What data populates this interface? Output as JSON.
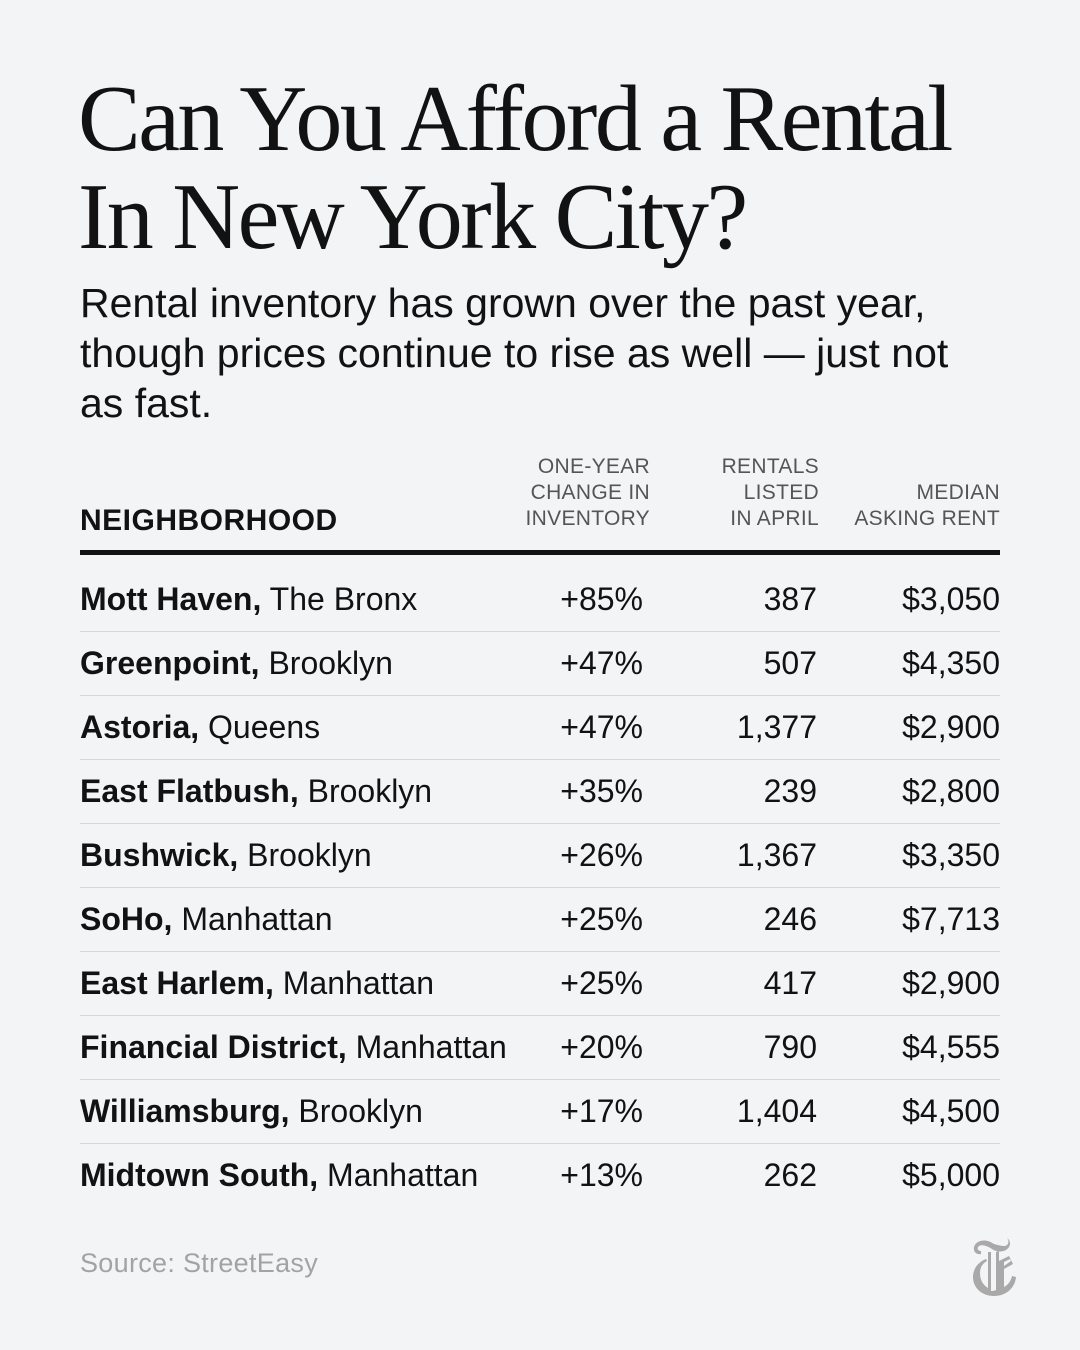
{
  "title": "Can You Afford a Rental In New York City?",
  "subtitle": "Rental inventory has grown over the past year, though prices continue to rise as well — just not as fast.",
  "table": {
    "columns": {
      "neighborhood": "NEIGHBORHOOD",
      "change": [
        "ONE-YEAR",
        "CHANGE IN",
        "INVENTORY"
      ],
      "rentals": [
        "RENTALS",
        "LISTED",
        "IN APRIL"
      ],
      "rent": [
        "MEDIAN",
        "ASKING RENT"
      ]
    },
    "rows": [
      {
        "neighborhood": "Mott Haven,",
        "borough": "The Bronx",
        "change": "+85%",
        "rentals": "387",
        "rent": "$3,050"
      },
      {
        "neighborhood": "Greenpoint,",
        "borough": "Brooklyn",
        "change": "+47%",
        "rentals": "507",
        "rent": "$4,350"
      },
      {
        "neighborhood": "Astoria,",
        "borough": "Queens",
        "change": "+47%",
        "rentals": "1,377",
        "rent": "$2,900"
      },
      {
        "neighborhood": "East Flatbush,",
        "borough": "Brooklyn",
        "change": "+35%",
        "rentals": "239",
        "rent": "$2,800"
      },
      {
        "neighborhood": "Bushwick,",
        "borough": "Brooklyn",
        "change": "+26%",
        "rentals": "1,367",
        "rent": "$3,350"
      },
      {
        "neighborhood": "SoHo,",
        "borough": "Manhattan",
        "change": "+25%",
        "rentals": "246",
        "rent": "$7,713"
      },
      {
        "neighborhood": "East Harlem,",
        "borough": "Manhattan",
        "change": "+25%",
        "rentals": "417",
        "rent": "$2,900"
      },
      {
        "neighborhood": "Financial District,",
        "borough": "Manhattan",
        "change": "+20%",
        "rentals": "790",
        "rent": "$4,555"
      },
      {
        "neighborhood": "Williamsburg,",
        "borough": "Brooklyn",
        "change": "+17%",
        "rentals": "1,404",
        "rent": "$4,500"
      },
      {
        "neighborhood": "Midtown South,",
        "borough": "Manhattan",
        "change": "+13%",
        "rentals": "262",
        "rent": "$5,000"
      }
    ]
  },
  "source": "Source: StreetEasy",
  "logo": {
    "icon": "nyt-t-logo-icon",
    "color": "#a9a9a9"
  }
}
